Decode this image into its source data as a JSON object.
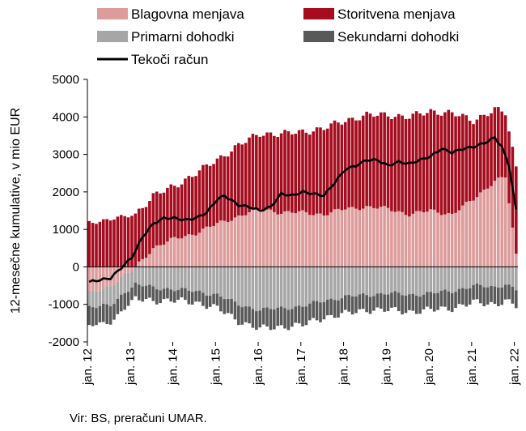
{
  "chart_data": {
    "type": "bar",
    "stacked": true,
    "ylabel": "12-mesečne kumulative, v mio EUR",
    "ylim": [
      -2000,
      5000
    ],
    "yticks": [
      5000,
      4000,
      3000,
      2000,
      1000,
      0,
      -1000,
      -2000
    ],
    "x_tick_labels": [
      "jan. 12",
      "jan. 13",
      "jan. 14",
      "jan. 15",
      "jan. 16",
      "jan. 17",
      "jan. 18",
      "jan. 19",
      "jan. 20",
      "jan. 21",
      "jan. 22"
    ],
    "legend_position": "top",
    "grid": false,
    "months": 121,
    "series": [
      {
        "name": "Blagovna menjava",
        "color": "#dd9b9b",
        "kind": "bar",
        "key_points": [
          [
            0,
            -700
          ],
          [
            6,
            -500
          ],
          [
            12,
            -100
          ],
          [
            18,
            500
          ],
          [
            24,
            750
          ],
          [
            30,
            900
          ],
          [
            36,
            1150
          ],
          [
            42,
            1350
          ],
          [
            48,
            1550
          ],
          [
            54,
            1450
          ],
          [
            60,
            1450
          ],
          [
            66,
            1400
          ],
          [
            72,
            1550
          ],
          [
            78,
            1600
          ],
          [
            84,
            1550
          ],
          [
            90,
            1400
          ],
          [
            96,
            1500
          ],
          [
            102,
            1400
          ],
          [
            108,
            1800
          ],
          [
            114,
            2300
          ],
          [
            117,
            2400
          ],
          [
            120,
            300
          ]
        ]
      },
      {
        "name": "Storitvena menjava",
        "color": "#a50d1f",
        "kind": "bar",
        "key_points": [
          [
            0,
            1200
          ],
          [
            6,
            1250
          ],
          [
            12,
            1400
          ],
          [
            18,
            1400
          ],
          [
            24,
            1400
          ],
          [
            30,
            1600
          ],
          [
            36,
            1700
          ],
          [
            42,
            1900
          ],
          [
            48,
            2000
          ],
          [
            54,
            2100
          ],
          [
            60,
            2150
          ],
          [
            66,
            2300
          ],
          [
            72,
            2350
          ],
          [
            78,
            2450
          ],
          [
            84,
            2500
          ],
          [
            90,
            2600
          ],
          [
            96,
            2650
          ],
          [
            102,
            2700
          ],
          [
            108,
            2100
          ],
          [
            114,
            1900
          ],
          [
            117,
            1700
          ],
          [
            120,
            2350
          ]
        ]
      },
      {
        "name": "Primarni dohodki",
        "color": "#a6a6a6",
        "kind": "bar",
        "key_points": [
          [
            0,
            -400
          ],
          [
            6,
            -500
          ],
          [
            12,
            -450
          ],
          [
            18,
            -550
          ],
          [
            24,
            -600
          ],
          [
            30,
            -650
          ],
          [
            36,
            -750
          ],
          [
            42,
            -1000
          ],
          [
            48,
            -1150
          ],
          [
            54,
            -1100
          ],
          [
            60,
            -1050
          ],
          [
            66,
            -900
          ],
          [
            72,
            -800
          ],
          [
            78,
            -750
          ],
          [
            84,
            -700
          ],
          [
            90,
            -750
          ],
          [
            96,
            -700
          ],
          [
            102,
            -650
          ],
          [
            108,
            -500
          ],
          [
            114,
            -550
          ],
          [
            117,
            -450
          ],
          [
            120,
            -600
          ]
        ]
      },
      {
        "name": "Sekundarni dohodki",
        "color": "#595959",
        "kind": "bar",
        "key_points": [
          [
            0,
            -500
          ],
          [
            6,
            -450
          ],
          [
            12,
            -400
          ],
          [
            18,
            -350
          ],
          [
            24,
            -300
          ],
          [
            30,
            -300
          ],
          [
            36,
            -350
          ],
          [
            42,
            -450
          ],
          [
            48,
            -500
          ],
          [
            54,
            -500
          ],
          [
            60,
            -500
          ],
          [
            66,
            -450
          ],
          [
            72,
            -450
          ],
          [
            78,
            -400
          ],
          [
            84,
            -450
          ],
          [
            90,
            -450
          ],
          [
            96,
            -450
          ],
          [
            102,
            -450
          ],
          [
            108,
            -450
          ],
          [
            114,
            -450
          ],
          [
            117,
            -450
          ],
          [
            120,
            -450
          ]
        ]
      },
      {
        "name": "Tekoči račun",
        "color": "#000000",
        "kind": "line",
        "key_points": [
          [
            0,
            -400
          ],
          [
            6,
            -300
          ],
          [
            12,
            250
          ],
          [
            15,
            800
          ],
          [
            18,
            1150
          ],
          [
            21,
            1300
          ],
          [
            24,
            1300
          ],
          [
            27,
            1250
          ],
          [
            30,
            1300
          ],
          [
            33,
            1450
          ],
          [
            36,
            1800
          ],
          [
            38,
            1900
          ],
          [
            42,
            1650
          ],
          [
            45,
            1600
          ],
          [
            48,
            1500
          ],
          [
            51,
            1600
          ],
          [
            54,
            1950
          ],
          [
            57,
            1900
          ],
          [
            60,
            2000
          ],
          [
            63,
            1950
          ],
          [
            66,
            1900
          ],
          [
            69,
            2250
          ],
          [
            72,
            2600
          ],
          [
            75,
            2700
          ],
          [
            78,
            2850
          ],
          [
            81,
            2850
          ],
          [
            84,
            2700
          ],
          [
            87,
            2800
          ],
          [
            90,
            2750
          ],
          [
            93,
            2850
          ],
          [
            96,
            2950
          ],
          [
            99,
            3150
          ],
          [
            102,
            3050
          ],
          [
            105,
            3150
          ],
          [
            108,
            3200
          ],
          [
            111,
            3300
          ],
          [
            114,
            3450
          ],
          [
            116,
            3200
          ],
          [
            118,
            2700
          ],
          [
            120,
            1500
          ]
        ]
      }
    ]
  },
  "source": "Vir: BS, preračuni UMAR."
}
